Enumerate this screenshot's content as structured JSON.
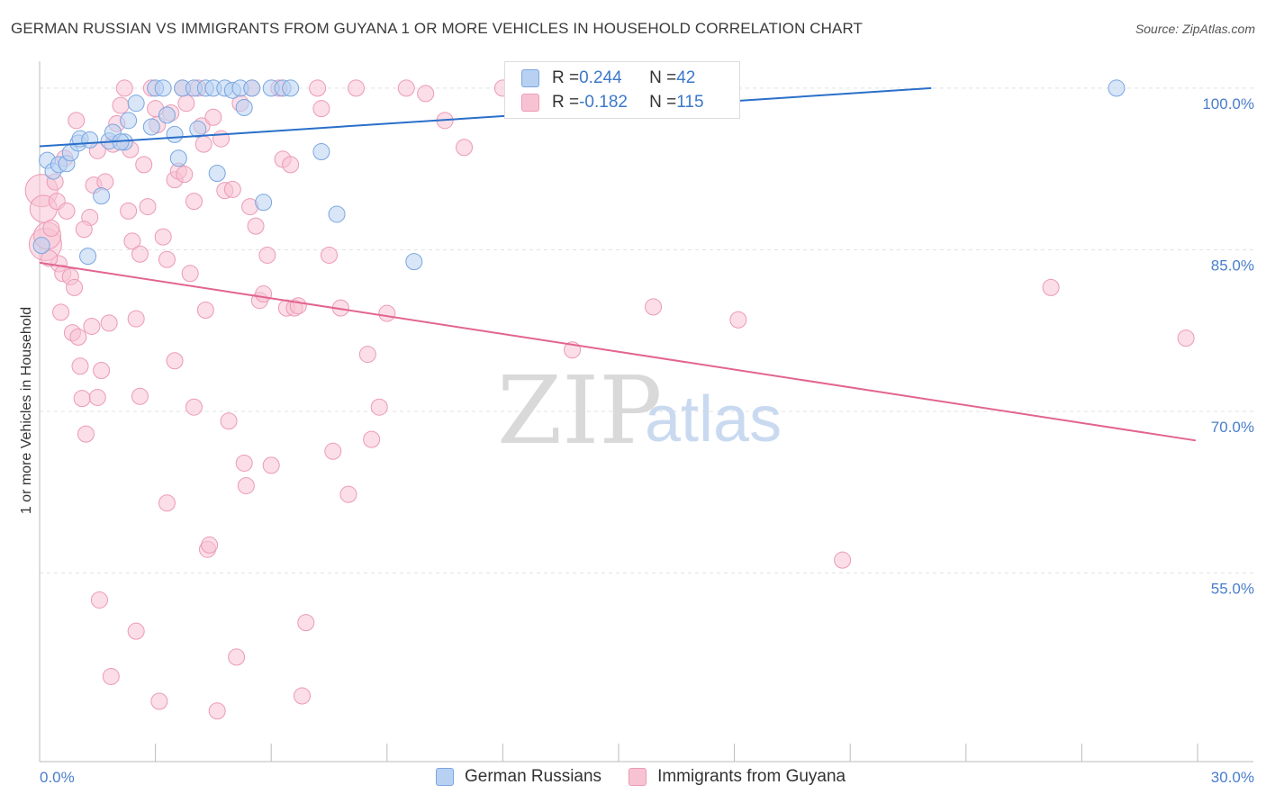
{
  "title": "GERMAN RUSSIAN VS IMMIGRANTS FROM GUYANA 1 OR MORE VEHICLES IN HOUSEHOLD CORRELATION CHART",
  "source": "Source: ZipAtlas.com",
  "watermark": {
    "zip": "ZIP",
    "atlas": "atlas"
  },
  "legend": {
    "series1": {
      "r_label": "R = ",
      "r_value": "0.244",
      "n_label": "N = ",
      "n_value": "42"
    },
    "series2": {
      "r_label": "R = ",
      "r_value": "-0.182",
      "n_label": "N = ",
      "n_value": "115"
    }
  },
  "bottom_legend": [
    "German Russians",
    "Immigrants from Guyana"
  ],
  "colors": {
    "blue_fill": "#b8d1f3",
    "blue_stroke": "#7aa6e0",
    "blue_line": "#2a6fc9",
    "pink_fill": "#f7c3d3",
    "pink_stroke": "#ec9ab6",
    "pink_line": "#e2658f",
    "grid": "#e3e3e3",
    "axis_text": "#4a7ecb"
  },
  "chart_data": {
    "type": "scatter",
    "title": "GERMAN RUSSIAN VS IMMIGRANTS FROM GUYANA 1 OR MORE VEHICLES IN HOUSEHOLD CORRELATION CHART",
    "xlabel": "",
    "ylabel": "1 or more Vehicles in Household",
    "xlim": [
      0,
      30
    ],
    "ylim": [
      37.5,
      102.5
    ],
    "x_tick_labels": [
      "0.0%",
      "30.0%"
    ],
    "y_ticks": [
      55,
      70,
      85,
      100
    ],
    "y_tick_labels": [
      "55.0%",
      "70.0%",
      "85.0%",
      "100.0%"
    ],
    "series": [
      {
        "name": "German Russians",
        "trend": {
          "x": [
            0,
            23.1
          ],
          "y": [
            94.6,
            100
          ]
        },
        "points": [
          [
            0.05,
            85.4,
            1
          ],
          [
            0.2,
            93.3,
            1
          ],
          [
            0.35,
            92.3,
            1
          ],
          [
            0.5,
            92.9,
            1
          ],
          [
            0.7,
            93.0,
            1
          ],
          [
            0.8,
            94.0,
            1
          ],
          [
            1.0,
            94.9,
            1
          ],
          [
            1.05,
            95.3,
            1
          ],
          [
            1.3,
            95.2,
            1
          ],
          [
            1.8,
            95.1,
            1
          ],
          [
            1.9,
            95.9,
            1
          ],
          [
            2.2,
            95.0,
            1
          ],
          [
            2.3,
            97.0,
            1
          ],
          [
            2.5,
            98.6,
            1
          ],
          [
            2.9,
            96.4,
            1
          ],
          [
            3.0,
            100,
            1
          ],
          [
            3.2,
            100,
            1
          ],
          [
            3.3,
            97.5,
            1
          ],
          [
            3.5,
            95.7,
            1
          ],
          [
            3.6,
            93.5,
            1
          ],
          [
            3.7,
            100,
            1
          ],
          [
            4.0,
            100,
            1
          ],
          [
            4.1,
            96.2,
            1
          ],
          [
            4.3,
            100,
            1
          ],
          [
            4.5,
            100,
            1
          ],
          [
            4.6,
            92.1,
            1
          ],
          [
            4.8,
            100,
            1
          ],
          [
            5.0,
            99.8,
            1
          ],
          [
            5.2,
            100,
            1
          ],
          [
            5.3,
            98.2,
            1
          ],
          [
            5.5,
            100,
            1
          ],
          [
            5.8,
            89.4,
            1
          ],
          [
            6.0,
            100,
            1
          ],
          [
            6.3,
            100,
            1
          ],
          [
            6.5,
            100,
            1
          ],
          [
            7.3,
            94.1,
            1
          ],
          [
            7.7,
            88.3,
            1
          ],
          [
            9.7,
            83.9,
            1
          ],
          [
            1.25,
            84.4,
            1
          ],
          [
            1.6,
            90.0,
            1
          ],
          [
            2.1,
            95.0,
            1
          ],
          [
            27.9,
            100,
            1
          ]
        ]
      },
      {
        "name": "Immigrants from Guyana",
        "trend": {
          "x": [
            0,
            29.95
          ],
          "y": [
            83.8,
            67.3
          ]
        },
        "points": [
          [
            0.05,
            90.5,
            3
          ],
          [
            0.1,
            88.8,
            2
          ],
          [
            0.15,
            85.5,
            3
          ],
          [
            0.2,
            86.3,
            2
          ],
          [
            0.3,
            87.0,
            1
          ],
          [
            0.4,
            91.3,
            1
          ],
          [
            0.45,
            89.5,
            1
          ],
          [
            0.5,
            83.7,
            1
          ],
          [
            0.6,
            82.8,
            1
          ],
          [
            0.7,
            88.6,
            1
          ],
          [
            0.8,
            82.5,
            1
          ],
          [
            0.9,
            81.5,
            1
          ],
          [
            0.85,
            77.3,
            1
          ],
          [
            1.0,
            76.9,
            1
          ],
          [
            1.05,
            74.2,
            1
          ],
          [
            1.1,
            71.2,
            1
          ],
          [
            1.2,
            67.9,
            1
          ],
          [
            1.3,
            88.0,
            1
          ],
          [
            1.35,
            77.9,
            1
          ],
          [
            1.4,
            91.0,
            1
          ],
          [
            1.5,
            94.2,
            1
          ],
          [
            1.6,
            73.8,
            1
          ],
          [
            1.5,
            71.3,
            1
          ],
          [
            1.55,
            52.5,
            1
          ],
          [
            1.7,
            91.3,
            1
          ],
          [
            1.8,
            78.2,
            1
          ],
          [
            1.85,
            45.4,
            1
          ],
          [
            1.9,
            94.8,
            1
          ],
          [
            2.0,
            96.7,
            1
          ],
          [
            2.1,
            98.4,
            1
          ],
          [
            2.2,
            100,
            1
          ],
          [
            2.3,
            88.6,
            1
          ],
          [
            2.4,
            85.8,
            1
          ],
          [
            2.5,
            78.6,
            1
          ],
          [
            2.5,
            49.6,
            1
          ],
          [
            2.6,
            71.4,
            1
          ],
          [
            2.6,
            84.6,
            1
          ],
          [
            2.7,
            92.9,
            1
          ],
          [
            2.8,
            89.0,
            1
          ],
          [
            2.9,
            100,
            1
          ],
          [
            3.0,
            98.1,
            1
          ],
          [
            3.05,
            96.6,
            1
          ],
          [
            3.1,
            43.1,
            1
          ],
          [
            3.2,
            86.2,
            1
          ],
          [
            3.3,
            84.1,
            1
          ],
          [
            3.3,
            61.5,
            1
          ],
          [
            3.4,
            97.7,
            1
          ],
          [
            3.5,
            91.5,
            1
          ],
          [
            3.5,
            74.7,
            1
          ],
          [
            3.6,
            92.3,
            1
          ],
          [
            3.7,
            100,
            1
          ],
          [
            3.8,
            98.6,
            1
          ],
          [
            3.9,
            82.8,
            1
          ],
          [
            4.0,
            89.5,
            1
          ],
          [
            4.0,
            70.4,
            1
          ],
          [
            4.1,
            100,
            1
          ],
          [
            4.2,
            96.5,
            1
          ],
          [
            4.3,
            79.4,
            1
          ],
          [
            4.35,
            57.2,
            1
          ],
          [
            4.4,
            57.6,
            1
          ],
          [
            4.5,
            97.3,
            1
          ],
          [
            4.6,
            42.2,
            1
          ],
          [
            4.7,
            95.3,
            1
          ],
          [
            4.8,
            90.5,
            1
          ],
          [
            4.9,
            69.1,
            1
          ],
          [
            5.0,
            90.6,
            1
          ],
          [
            5.1,
            47.2,
            1
          ],
          [
            5.2,
            98.6,
            1
          ],
          [
            5.3,
            65.2,
            1
          ],
          [
            5.35,
            63.1,
            1
          ],
          [
            5.5,
            100,
            1
          ],
          [
            5.6,
            87.2,
            1
          ],
          [
            5.7,
            80.3,
            1
          ],
          [
            5.8,
            80.9,
            1
          ],
          [
            5.9,
            84.5,
            1
          ],
          [
            6.0,
            65.0,
            1
          ],
          [
            6.2,
            100,
            1
          ],
          [
            6.3,
            93.4,
            1
          ],
          [
            6.4,
            79.6,
            1
          ],
          [
            6.5,
            92.9,
            1
          ],
          [
            6.6,
            79.6,
            1
          ],
          [
            6.7,
            79.8,
            1
          ],
          [
            6.8,
            43.6,
            1
          ],
          [
            6.9,
            50.4,
            1
          ],
          [
            7.2,
            100,
            1
          ],
          [
            7.3,
            98.1,
            1
          ],
          [
            7.5,
            84.5,
            1
          ],
          [
            7.6,
            66.3,
            1
          ],
          [
            7.8,
            79.6,
            1
          ],
          [
            8.0,
            62.3,
            1
          ],
          [
            8.2,
            100,
            1
          ],
          [
            8.5,
            75.3,
            1
          ],
          [
            8.6,
            67.4,
            1
          ],
          [
            8.8,
            70.4,
            1
          ],
          [
            9.0,
            79.1,
            1
          ],
          [
            9.5,
            100,
            1
          ],
          [
            10.0,
            99.5,
            1
          ],
          [
            10.5,
            97.0,
            1
          ],
          [
            11.0,
            94.5,
            1
          ],
          [
            12.0,
            100,
            1
          ],
          [
            13.8,
            75.7,
            1
          ],
          [
            15.9,
            79.7,
            1
          ],
          [
            18.1,
            78.5,
            1
          ],
          [
            20.8,
            56.2,
            1
          ],
          [
            26.2,
            81.5,
            1
          ],
          [
            29.7,
            76.8,
            1
          ],
          [
            0.25,
            84.2,
            1
          ],
          [
            0.55,
            79.2,
            1
          ],
          [
            0.65,
            93.5,
            1
          ],
          [
            1.15,
            86.9,
            1
          ],
          [
            2.35,
            94.3,
            1
          ],
          [
            3.75,
            92.0,
            1
          ],
          [
            4.25,
            94.8,
            1
          ],
          [
            5.45,
            89.0,
            1
          ],
          [
            0.95,
            97.0,
            1
          ]
        ]
      }
    ]
  }
}
